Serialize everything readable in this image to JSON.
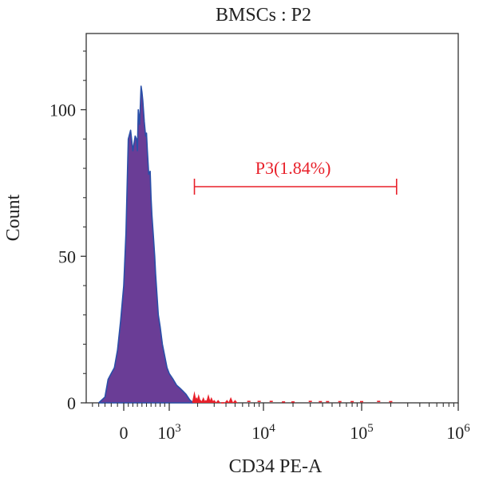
{
  "chart_data": {
    "type": "area",
    "title": "BMSCs : P2",
    "xlabel": "CD34 PE-A",
    "ylabel": "Count",
    "x_scale": "biexponential",
    "y_ticks": [
      {
        "value": 0,
        "label": "0"
      },
      {
        "value": 50,
        "label": "50"
      },
      {
        "value": 100,
        "label": "100"
      }
    ],
    "ylim": [
      0,
      126
    ],
    "x_ticks": [
      {
        "value": 0,
        "base": "0",
        "exp": ""
      },
      {
        "value": 1000,
        "base": "10",
        "exp": "3"
      },
      {
        "value": 10000,
        "base": "10",
        "exp": "4"
      },
      {
        "value": 100000,
        "base": "10",
        "exp": "5"
      },
      {
        "value": 1000000,
        "base": "10",
        "exp": "6"
      }
    ],
    "gate": {
      "name": "P3",
      "percent": "1.84%",
      "label": "P3(1.84%)",
      "x_range": [
        1850,
        230000
      ],
      "color": "#e8202a"
    },
    "fill_color": "#6a3d96",
    "line_color": "#2a4fa8",
    "histogram": {
      "x": [
        -400,
        -300,
        -250,
        -200,
        -150,
        -100,
        -50,
        0,
        50,
        100,
        150,
        200,
        250,
        280,
        300,
        320,
        350,
        380,
        400,
        420,
        450,
        480,
        500,
        520,
        550,
        580,
        600,
        620,
        650,
        680,
        700,
        730,
        760,
        800,
        850,
        900,
        950,
        1000,
        1100,
        1200,
        1300,
        1400,
        1500,
        1650,
        1800
      ],
      "counts": [
        0,
        2,
        8,
        10,
        12,
        18,
        28,
        40,
        58,
        90,
        93,
        86,
        91,
        90,
        86,
        100,
        95,
        108,
        106,
        103,
        96,
        91,
        92,
        86,
        78,
        79,
        70,
        64,
        57,
        50,
        44,
        37,
        30,
        26,
        20,
        16,
        12,
        10,
        8,
        6,
        5,
        4,
        3,
        1,
        0
      ]
    },
    "gated_events": {
      "x": [
        1850,
        1950,
        2050,
        2150,
        2300,
        2450,
        2600,
        2800,
        3000,
        3300,
        3700,
        4100,
        4500,
        5000,
        7000,
        9000,
        12000,
        16000,
        20000,
        30000,
        38000,
        45000,
        60000,
        80000,
        100000,
        150000,
        200000
      ],
      "counts": [
        4,
        2,
        3,
        1,
        2,
        1,
        3,
        2,
        1,
        1,
        0,
        1,
        2,
        1,
        0.5,
        0.5,
        0.5,
        0.3,
        0.3,
        0.5,
        0.4,
        0.4,
        0.4,
        0.4,
        0.4,
        0.5,
        0.4
      ]
    }
  }
}
